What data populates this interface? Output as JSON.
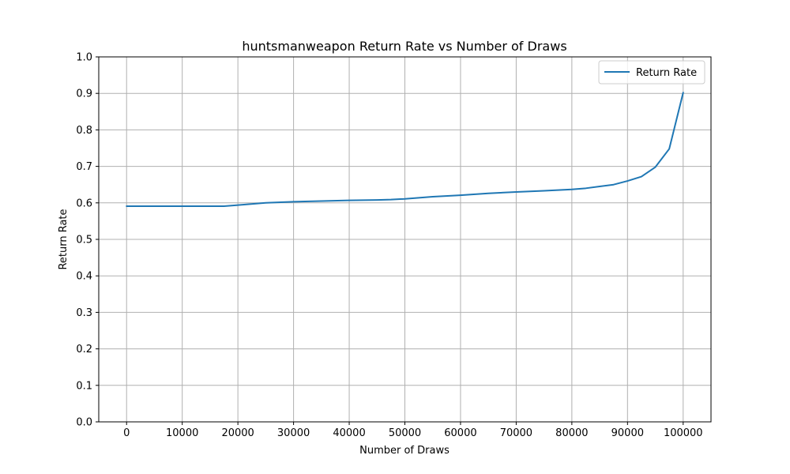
{
  "chart_data": {
    "type": "line",
    "title": "huntsmanweapon Return Rate vs Number of Draws",
    "xlabel": "Number of Draws",
    "ylabel": "Return Rate",
    "xlim": [
      -5000,
      105000
    ],
    "ylim": [
      0.0,
      1.0
    ],
    "xticks": [
      0,
      10000,
      20000,
      30000,
      40000,
      50000,
      60000,
      70000,
      80000,
      90000,
      100000
    ],
    "xtick_labels": [
      "0",
      "10000",
      "20000",
      "30000",
      "40000",
      "50000",
      "60000",
      "70000",
      "80000",
      "90000",
      "100000"
    ],
    "yticks": [
      0.0,
      0.1,
      0.2,
      0.3,
      0.4,
      0.5,
      0.6,
      0.7,
      0.8,
      0.9,
      1.0
    ],
    "ytick_labels": [
      "0.0",
      "0.1",
      "0.2",
      "0.3",
      "0.4",
      "0.5",
      "0.6",
      "0.7",
      "0.8",
      "0.9",
      "1.0"
    ],
    "grid": true,
    "legend_position": "top-right",
    "series": [
      {
        "name": "Return Rate",
        "color": "#1f77b4",
        "x": [
          0,
          5000,
          10000,
          15000,
          17500,
          20000,
          25000,
          30000,
          35000,
          40000,
          45000,
          47500,
          50000,
          52500,
          55000,
          60000,
          65000,
          70000,
          75000,
          80000,
          82500,
          85000,
          87500,
          90000,
          92500,
          95000,
          97500,
          100000
        ],
        "y": [
          0.591,
          0.591,
          0.591,
          0.591,
          0.591,
          0.594,
          0.6,
          0.603,
          0.605,
          0.607,
          0.608,
          0.609,
          0.611,
          0.614,
          0.617,
          0.621,
          0.626,
          0.63,
          0.633,
          0.637,
          0.64,
          0.645,
          0.65,
          0.66,
          0.672,
          0.698,
          0.748,
          0.902
        ]
      }
    ]
  }
}
